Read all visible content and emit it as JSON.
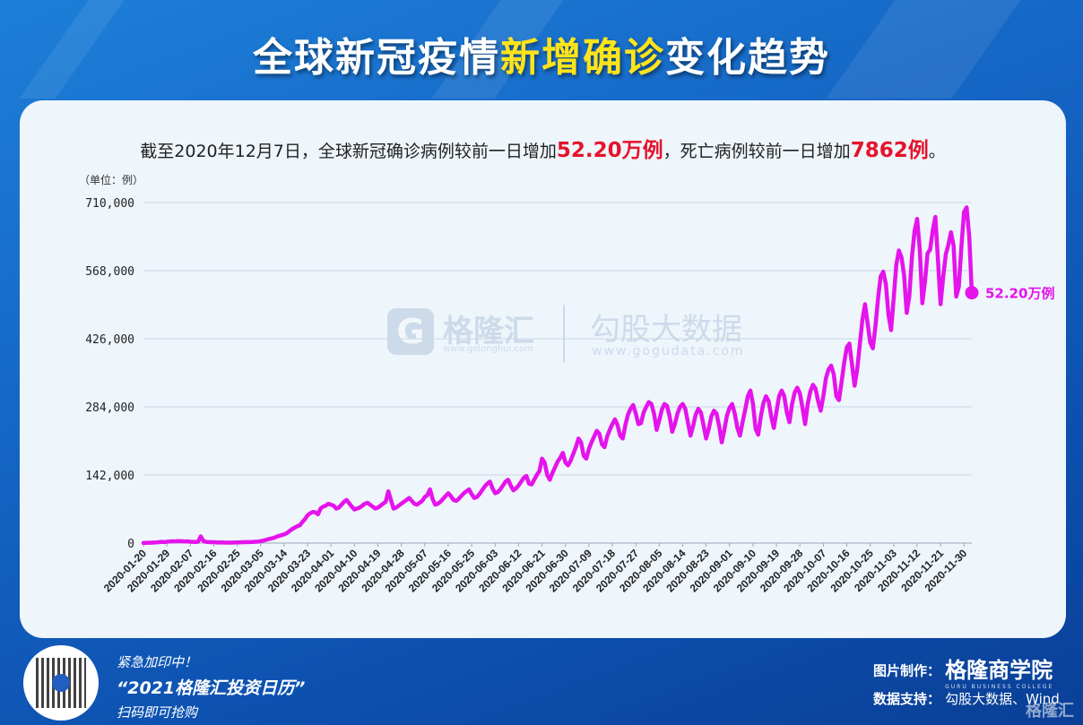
{
  "title": {
    "part1": "全球新冠疫情",
    "highlight": "新增确诊",
    "part2": "变化趋势"
  },
  "summary": {
    "prefix": "截至2020年12月7日，全球新冠确诊病例较前一日增加",
    "cases": "52.20万例",
    "middle": "，死亡病例较前一日增加",
    "deaths": "7862例",
    "suffix": "。"
  },
  "unit_label": "（单位：例）",
  "watermark": {
    "logo_char": "G",
    "brand1": "格隆汇",
    "url1": "www.gelonghui.com",
    "brand2": "勾股大数据",
    "url2": "www.gogudata.com"
  },
  "promo": {
    "line1": "紧急加印中！",
    "line2": "“2021格隆汇投资日历”",
    "line3": "扫码即可抢购"
  },
  "credits": {
    "made_label": "图片制作：",
    "made_by": "格隆商学院",
    "made_by_sub": "GURU BUSINESS COLLEGE",
    "data_label": "数据支持：",
    "data_by": "勾股大数据、Wind"
  },
  "corner_logo": "格隆汇",
  "colors": {
    "line": "#e513ec",
    "grid": "#c9d6e6",
    "accent": "#ffe41a",
    "red": "#e5132b"
  },
  "chart_data": {
    "type": "line",
    "ylim": [
      0,
      710000
    ],
    "y_ticks": [
      "0",
      "142,000",
      "284,000",
      "426,000",
      "568,000",
      "710,000"
    ],
    "x_start": "2020-01-20",
    "x_tick_labels": [
      "2020-01-20",
      "2020-01-29",
      "2020-02-07",
      "2020-02-16",
      "2020-02-25",
      "2020-03-05",
      "2020-03-14",
      "2020-03-23",
      "2020-04-01",
      "2020-04-10",
      "2020-04-19",
      "2020-04-28",
      "2020-05-07",
      "2020-05-16",
      "2020-05-25",
      "2020-06-03",
      "2020-06-12",
      "2020-06-21",
      "2020-06-30",
      "2020-07-09",
      "2020-07-18",
      "2020-07-27",
      "2020-08-05",
      "2020-08-14",
      "2020-08-23",
      "2020-09-01",
      "2020-09-10",
      "2020-09-19",
      "2020-09-28",
      "2020-10-07",
      "2020-10-16",
      "2020-10-25",
      "2020-11-03",
      "2020-11-12",
      "2020-11-21",
      "2020-11-30"
    ],
    "end_label": "52.20万例",
    "values": [
      300,
      400,
      600,
      800,
      1200,
      1500,
      2000,
      2600,
      2000,
      2800,
      3200,
      3800,
      3600,
      4100,
      3900,
      3700,
      3200,
      3500,
      2800,
      2500,
      2100,
      3000,
      14000,
      4500,
      2500,
      2000,
      1800,
      1800,
      1500,
      1200,
      1300,
      1100,
      900,
      1000,
      900,
      1100,
      1300,
      1500,
      1800,
      1900,
      2200,
      2100,
      2300,
      2800,
      3000,
      4100,
      5200,
      6500,
      8200,
      9400,
      10800,
      13000,
      15000,
      16500,
      18200,
      20500,
      24800,
      29000,
      32000,
      35000,
      37000,
      44000,
      50000,
      58000,
      62000,
      65000,
      64000,
      60000,
      72000,
      76000,
      78000,
      82000,
      80000,
      78000,
      72000,
      74000,
      80000,
      86000,
      90000,
      83000,
      76000,
      70000,
      72000,
      74000,
      78000,
      82000,
      84000,
      80000,
      76000,
      72000,
      74000,
      78000,
      82000,
      86000,
      108000,
      90000,
      72000,
      74000,
      78000,
      82000,
      86000,
      90000,
      94000,
      88000,
      82000,
      80000,
      84000,
      88000,
      96000,
      100000,
      112000,
      92000,
      80000,
      82000,
      86000,
      92000,
      98000,
      104000,
      98000,
      90000,
      88000,
      92000,
      98000,
      104000,
      108000,
      112000,
      102000,
      94000,
      96000,
      102000,
      110000,
      118000,
      124000,
      128000,
      114000,
      104000,
      106000,
      112000,
      120000,
      128000,
      132000,
      120000,
      110000,
      114000,
      120000,
      128000,
      136000,
      140000,
      124000,
      122000,
      132000,
      142000,
      150000,
      176000,
      168000,
      142000,
      132000,
      146000,
      158000,
      170000,
      178000,
      188000,
      168000,
      162000,
      172000,
      186000,
      200000,
      218000,
      210000,
      182000,
      176000,
      196000,
      210000,
      222000,
      234000,
      228000,
      206000,
      200000,
      222000,
      236000,
      248000,
      258000,
      246000,
      224000,
      218000,
      246000,
      268000,
      280000,
      288000,
      270000,
      248000,
      250000,
      272000,
      284000,
      294000,
      290000,
      270000,
      236000,
      256000,
      278000,
      290000,
      286000,
      264000,
      232000,
      248000,
      270000,
      284000,
      290000,
      280000,
      252000,
      224000,
      244000,
      268000,
      280000,
      272000,
      246000,
      218000,
      238000,
      264000,
      276000,
      270000,
      244000,
      210000,
      236000,
      266000,
      282000,
      290000,
      270000,
      240000,
      224000,
      252000,
      278000,
      306000,
      318000,
      290000,
      238000,
      226000,
      264000,
      292000,
      306000,
      296000,
      264000,
      240000,
      274000,
      306000,
      318000,
      306000,
      272000,
      252000,
      290000,
      314000,
      324000,
      312000,
      282000,
      248000,
      290000,
      316000,
      330000,
      322000,
      296000,
      276000,
      306000,
      344000,
      362000,
      370000,
      352000,
      306000,
      298000,
      336000,
      376000,
      408000,
      416000,
      372000,
      328000,
      362000,
      414000,
      466000,
      498000,
      458000,
      418000,
      406000,
      452000,
      510000,
      556000,
      566000,
      540000,
      476000,
      444000,
      510000,
      580000,
      610000,
      596000,
      558000,
      480000,
      514000,
      596000,
      650000,
      676000,
      614000,
      500000,
      544000,
      604000,
      612000,
      652000,
      680000,
      590000,
      498000,
      554000,
      602000,
      622000,
      648000,
      620000,
      514000,
      534000,
      618000,
      690000,
      700000,
      640000,
      522000
    ]
  }
}
